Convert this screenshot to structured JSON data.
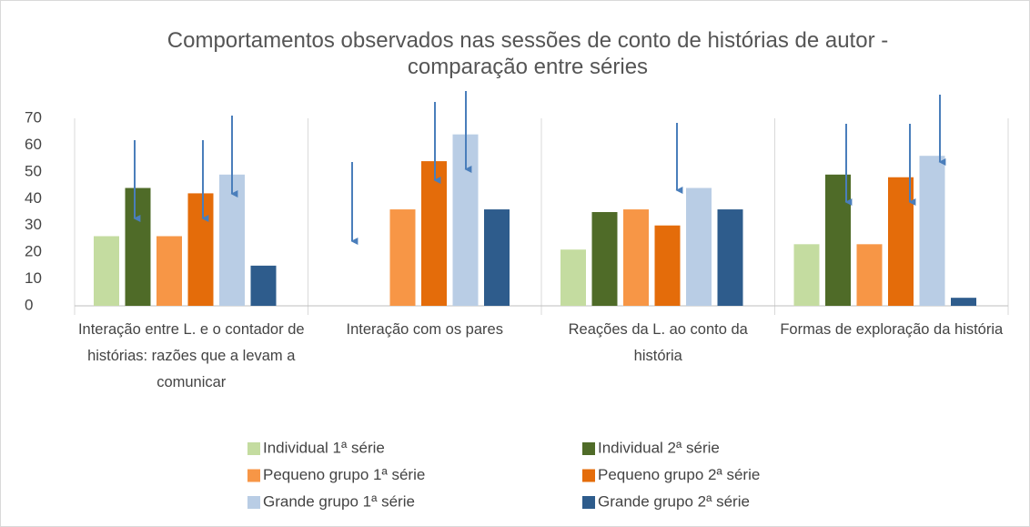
{
  "chart_data": {
    "type": "bar",
    "title": "Comportamentos observados nas sessões de conto de histórias de autor - comparação entre séries",
    "categories": [
      "Interação entre L. e o contador de histórias: razões que a levam a comunicar",
      "Interação com os pares",
      "Reações da L. ao conto da história",
      "Formas de exploração da história"
    ],
    "series": [
      {
        "name": "Individual  1ª série",
        "color": "#c4dca0",
        "values": [
          26,
          0,
          21,
          23
        ]
      },
      {
        "name": "Individual  2ª série",
        "color": "#4f6b28",
        "values": [
          44,
          0,
          35,
          49
        ]
      },
      {
        "name": "Pequeno grupo 1ª série",
        "color": "#f79646",
        "values": [
          26,
          36,
          36,
          23
        ]
      },
      {
        "name": "Pequeno grupo 2ª série",
        "color": "#e46c0a",
        "values": [
          42,
          54,
          30,
          48
        ]
      },
      {
        "name": "Grande grupo  1ª série",
        "color": "#b9cde5",
        "values": [
          49,
          64,
          44,
          56
        ]
      },
      {
        "name": "Grande grupo  2ª série",
        "color": "#2e5c8c",
        "values": [
          15,
          36,
          36,
          3
        ]
      }
    ],
    "ylim": [
      0,
      70
    ],
    "yticks": [
      0,
      10,
      20,
      30,
      40,
      50,
      60,
      70
    ],
    "grid": false
  }
}
